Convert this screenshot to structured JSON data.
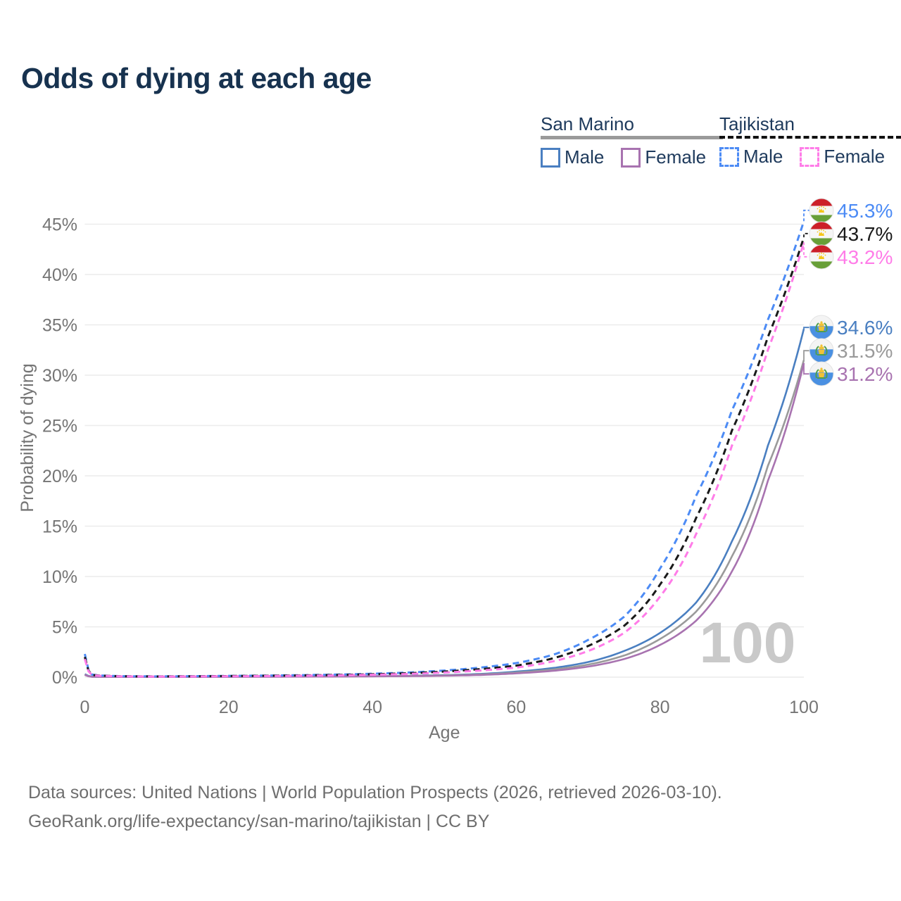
{
  "title": "Odds of dying at each age",
  "colors": {
    "title_text": "#17324f",
    "legend_text": "#1e3a5c",
    "axis_text": "#757575",
    "grid": "#ececec",
    "watermark": "#c9c9c9",
    "footer_text": "#6e6e6e",
    "flag_ring": "#e3e3e3",
    "tajikistan_flag_red": "#cc2029",
    "tajikistan_flag_white": "#f6f6f6",
    "tajikistan_flag_green": "#689f38",
    "tajikistan_flag_gold": "#f5c518",
    "san_marino_flag_white": "#f4f4f4",
    "san_marino_flag_blue": "#4a90e2",
    "san_marino_flag_gold": "#f0c236",
    "san_marino_flag_green": "#4f9e4f"
  },
  "legend": {
    "groups": [
      {
        "name": "San Marino",
        "line_style": "solid",
        "underline_color": "#9a9a9a",
        "items": [
          {
            "label": "Male",
            "color": "#4a7fc1"
          },
          {
            "label": "Female",
            "color": "#a873b0"
          }
        ]
      },
      {
        "name": "Tajikistan",
        "line_style": "dashed",
        "underline_color": "#111111",
        "items": [
          {
            "label": "Male",
            "color": "#4c8bf5"
          },
          {
            "label": "Female",
            "color": "#ff7ce8"
          }
        ]
      }
    ]
  },
  "chart_data": {
    "type": "line",
    "title": "Odds of dying at each age",
    "xlabel": "Age",
    "ylabel": "Probability of dying",
    "xlim": [
      0,
      100
    ],
    "ylim_pct": [
      0,
      47
    ],
    "xticks": [
      0,
      20,
      40,
      60,
      80,
      100
    ],
    "yticks_pct": [
      0,
      5,
      10,
      15,
      20,
      25,
      30,
      35,
      40,
      45
    ],
    "grid": "horizontal",
    "legend_position": "top-right",
    "watermark": "100",
    "ages": [
      0,
      1,
      2,
      5,
      10,
      15,
      20,
      25,
      30,
      35,
      40,
      45,
      50,
      55,
      60,
      65,
      70,
      75,
      80,
      85,
      90,
      95,
      100
    ],
    "series": [
      {
        "id": "sm_male",
        "name": "San Marino Male",
        "country": "San Marino",
        "sex": "Male",
        "style": "solid",
        "color": "#4a7fc1",
        "flag": "san-marino",
        "end_label": "34.6%",
        "end_value_pct": 34.6,
        "values_pct": [
          0.3,
          0.05,
          0.04,
          0.03,
          0.02,
          0.04,
          0.05,
          0.06,
          0.07,
          0.08,
          0.1,
          0.14,
          0.2,
          0.32,
          0.55,
          0.9,
          1.5,
          2.6,
          4.4,
          7.4,
          13.5,
          23.0,
          34.6
        ]
      },
      {
        "id": "sm_both",
        "name": "San Marino Both sexes",
        "country": "San Marino",
        "sex": "Both",
        "style": "solid",
        "color": "#9a9a9a",
        "flag": "san-marino",
        "end_label": "31.5%",
        "end_value_pct": 31.5,
        "values_pct": [
          0.25,
          0.04,
          0.03,
          0.02,
          0.02,
          0.03,
          0.04,
          0.05,
          0.06,
          0.07,
          0.09,
          0.12,
          0.17,
          0.27,
          0.46,
          0.75,
          1.25,
          2.15,
          3.8,
          6.5,
          12.0,
          21.0,
          31.5
        ]
      },
      {
        "id": "sm_female",
        "name": "San Marino Female",
        "country": "San Marino",
        "sex": "Female",
        "style": "solid",
        "color": "#a873b0",
        "flag": "san-marino",
        "end_label": "31.2%",
        "end_value_pct": 31.2,
        "values_pct": [
          0.22,
          0.04,
          0.03,
          0.02,
          0.02,
          0.02,
          0.03,
          0.04,
          0.05,
          0.06,
          0.08,
          0.1,
          0.14,
          0.22,
          0.38,
          0.62,
          1.05,
          1.8,
          3.2,
          5.6,
          10.5,
          19.5,
          31.2
        ]
      },
      {
        "id": "tj_male",
        "name": "Tajikistan Male",
        "country": "Tajikistan",
        "sex": "Male",
        "style": "dashed",
        "color": "#4c8bf5",
        "flag": "tajikistan",
        "end_label": "45.3%",
        "end_value_pct": 45.3,
        "values_pct": [
          2.3,
          0.25,
          0.18,
          0.1,
          0.08,
          0.1,
          0.13,
          0.16,
          0.2,
          0.26,
          0.34,
          0.46,
          0.66,
          0.95,
          1.4,
          2.2,
          3.7,
          6.0,
          10.8,
          18.0,
          26.5,
          35.5,
          45.3
        ]
      },
      {
        "id": "tj_both",
        "name": "Tajikistan Both sexes",
        "country": "Tajikistan",
        "sex": "Both",
        "style": "dashed",
        "color": "#1a1a1a",
        "flag": "tajikistan",
        "end_label": "43.7%",
        "end_value_pct": 43.7,
        "values_pct": [
          2.0,
          0.22,
          0.16,
          0.09,
          0.07,
          0.09,
          0.11,
          0.14,
          0.17,
          0.22,
          0.29,
          0.39,
          0.56,
          0.8,
          1.15,
          1.85,
          3.1,
          5.1,
          9.2,
          15.8,
          24.5,
          33.8,
          43.7
        ]
      },
      {
        "id": "tj_female",
        "name": "Tajikistan Female",
        "country": "Tajikistan",
        "sex": "Female",
        "style": "dashed",
        "color": "#ff7ce8",
        "flag": "tajikistan",
        "end_label": "43.2%",
        "end_value_pct": 43.2,
        "values_pct": [
          1.8,
          0.2,
          0.14,
          0.08,
          0.06,
          0.07,
          0.09,
          0.11,
          0.14,
          0.18,
          0.24,
          0.32,
          0.46,
          0.66,
          0.95,
          1.55,
          2.6,
          4.4,
          8.0,
          14.2,
          23.0,
          32.5,
          43.2
        ]
      }
    ]
  },
  "footer": {
    "line1": "Data sources: United Nations | World Population Prospects (2026, retrieved 2026-03-10).",
    "line2": "GeoRank.org/life-expectancy/san-marino/tajikistan | CC BY"
  }
}
